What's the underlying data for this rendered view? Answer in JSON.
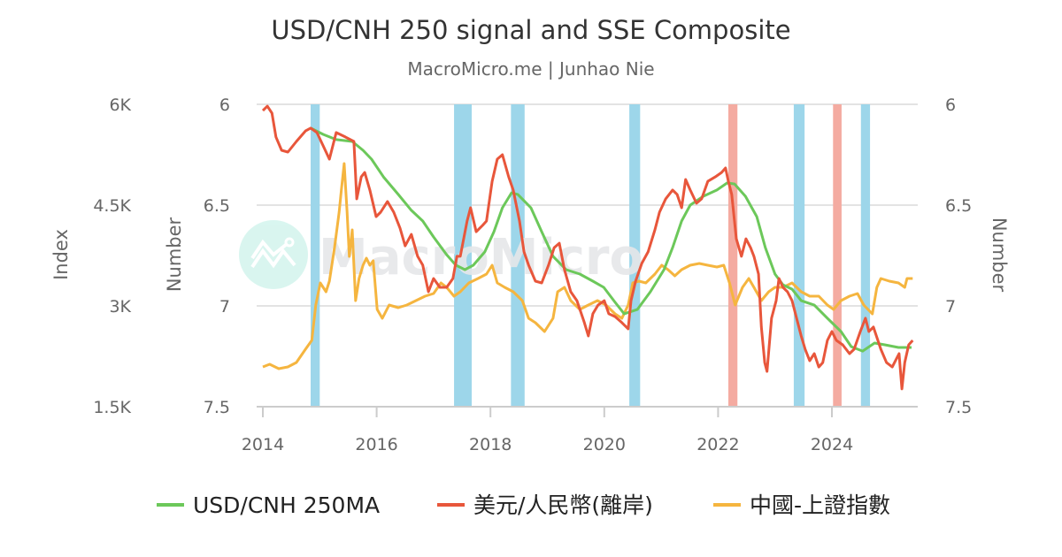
{
  "chart_data": {
    "type": "line",
    "title": "USD/CNH 250 signal and SSE Composite",
    "subtitle": "MacroMicro.me | Junhao Nie",
    "watermark": "MacroMicro",
    "x_axis": {
      "ticks": [
        "2014",
        "2016",
        "2018",
        "2020",
        "2022",
        "2024"
      ],
      "range": [
        2013.9,
        2025.5
      ]
    },
    "y_left": {
      "label": "Index",
      "ticks": [
        "6K",
        "4.5K",
        "3K",
        "1.5K"
      ],
      "range": [
        1500,
        6000
      ]
    },
    "y_mid": {
      "label": "Number",
      "ticks": [
        "6",
        "6.5",
        "7",
        "7.5"
      ],
      "range": [
        6,
        7.5
      ],
      "reversed": true
    },
    "y_right": {
      "label": "Number",
      "ticks": [
        "6",
        "6.5",
        "7",
        "7.5"
      ],
      "range": [
        6,
        7.5
      ],
      "reversed": true
    },
    "grid": true,
    "legend_position": "bottom",
    "bands": {
      "blue_color": "#9dd6ea",
      "red_color": "#f4aba1",
      "blue": [
        [
          2014.84,
          2015.0
        ],
        [
          2017.36,
          2017.67
        ],
        [
          2018.36,
          2018.6
        ],
        [
          2020.44,
          2020.63
        ],
        [
          2023.33,
          2023.52
        ],
        [
          2024.51,
          2024.67
        ]
      ],
      "red": [
        [
          2022.18,
          2022.34
        ],
        [
          2024.02,
          2024.17
        ]
      ]
    },
    "series": [
      {
        "name": "USD/CNH 250MA",
        "color": "#6cc85a",
        "axis": "y_mid",
        "points": [
          [
            2014.84,
            6.118
          ],
          [
            2015.06,
            6.149
          ],
          [
            2015.29,
            6.175
          ],
          [
            2015.57,
            6.184
          ],
          [
            2015.76,
            6.228
          ],
          [
            2015.91,
            6.272
          ],
          [
            2016.12,
            6.36
          ],
          [
            2016.38,
            6.447
          ],
          [
            2016.61,
            6.526
          ],
          [
            2016.81,
            6.579
          ],
          [
            2017.0,
            6.658
          ],
          [
            2017.23,
            6.746
          ],
          [
            2017.39,
            6.798
          ],
          [
            2017.55,
            6.82
          ],
          [
            2017.7,
            6.798
          ],
          [
            2017.9,
            6.732
          ],
          [
            2018.06,
            6.632
          ],
          [
            2018.21,
            6.513
          ],
          [
            2018.37,
            6.439
          ],
          [
            2018.48,
            6.447
          ],
          [
            2018.71,
            6.513
          ],
          [
            2018.9,
            6.632
          ],
          [
            2019.1,
            6.754
          ],
          [
            2019.33,
            6.82
          ],
          [
            2019.57,
            6.842
          ],
          [
            2019.8,
            6.877
          ],
          [
            2019.99,
            6.908
          ],
          [
            2020.19,
            6.982
          ],
          [
            2020.35,
            7.039
          ],
          [
            2020.58,
            7.018
          ],
          [
            2020.81,
            6.93
          ],
          [
            2021.05,
            6.82
          ],
          [
            2021.2,
            6.711
          ],
          [
            2021.36,
            6.579
          ],
          [
            2021.51,
            6.5
          ],
          [
            2021.74,
            6.456
          ],
          [
            2021.98,
            6.425
          ],
          [
            2022.16,
            6.39
          ],
          [
            2022.29,
            6.395
          ],
          [
            2022.48,
            6.456
          ],
          [
            2022.68,
            6.557
          ],
          [
            2022.83,
            6.711
          ],
          [
            2023.0,
            6.842
          ],
          [
            2023.14,
            6.895
          ],
          [
            2023.3,
            6.917
          ],
          [
            2023.46,
            6.974
          ],
          [
            2023.69,
            6.996
          ],
          [
            2023.92,
            7.061
          ],
          [
            2024.16,
            7.127
          ],
          [
            2024.34,
            7.202
          ],
          [
            2024.54,
            7.224
          ],
          [
            2024.75,
            7.184
          ],
          [
            2024.93,
            7.193
          ],
          [
            2025.17,
            7.206
          ],
          [
            2025.4,
            7.206
          ]
        ]
      },
      {
        "name": "美元/人民幣(離岸)",
        "color": "#e8563b",
        "axis": "y_mid",
        "points": [
          [
            2014.0,
            6.031
          ],
          [
            2014.08,
            6.009
          ],
          [
            2014.16,
            6.044
          ],
          [
            2014.23,
            6.162
          ],
          [
            2014.33,
            6.228
          ],
          [
            2014.44,
            6.237
          ],
          [
            2014.59,
            6.184
          ],
          [
            2014.75,
            6.132
          ],
          [
            2014.84,
            6.118
          ],
          [
            2014.95,
            6.14
          ],
          [
            2015.06,
            6.206
          ],
          [
            2015.17,
            6.272
          ],
          [
            2015.29,
            6.14
          ],
          [
            2015.45,
            6.162
          ],
          [
            2015.6,
            6.184
          ],
          [
            2015.65,
            6.469
          ],
          [
            2015.73,
            6.36
          ],
          [
            2015.79,
            6.338
          ],
          [
            2015.88,
            6.425
          ],
          [
            2015.99,
            6.557
          ],
          [
            2016.07,
            6.535
          ],
          [
            2016.19,
            6.482
          ],
          [
            2016.3,
            6.535
          ],
          [
            2016.41,
            6.614
          ],
          [
            2016.5,
            6.702
          ],
          [
            2016.61,
            6.645
          ],
          [
            2016.72,
            6.754
          ],
          [
            2016.81,
            6.798
          ],
          [
            2016.91,
            6.93
          ],
          [
            2017.0,
            6.864
          ],
          [
            2017.11,
            6.908
          ],
          [
            2017.23,
            6.908
          ],
          [
            2017.34,
            6.864
          ],
          [
            2017.41,
            6.754
          ],
          [
            2017.47,
            6.754
          ],
          [
            2017.59,
            6.579
          ],
          [
            2017.65,
            6.513
          ],
          [
            2017.75,
            6.632
          ],
          [
            2017.86,
            6.601
          ],
          [
            2017.93,
            6.579
          ],
          [
            2018.03,
            6.382
          ],
          [
            2018.12,
            6.272
          ],
          [
            2018.21,
            6.25
          ],
          [
            2018.32,
            6.36
          ],
          [
            2018.4,
            6.425
          ],
          [
            2018.51,
            6.579
          ],
          [
            2018.59,
            6.732
          ],
          [
            2018.67,
            6.798
          ],
          [
            2018.79,
            6.877
          ],
          [
            2018.9,
            6.886
          ],
          [
            2019.02,
            6.798
          ],
          [
            2019.12,
            6.711
          ],
          [
            2019.21,
            6.689
          ],
          [
            2019.3,
            6.82
          ],
          [
            2019.41,
            6.93
          ],
          [
            2019.52,
            6.974
          ],
          [
            2019.65,
            7.083
          ],
          [
            2019.72,
            7.149
          ],
          [
            2019.8,
            7.039
          ],
          [
            2019.89,
            6.996
          ],
          [
            2020.0,
            6.974
          ],
          [
            2020.08,
            7.039
          ],
          [
            2020.19,
            7.053
          ],
          [
            2020.31,
            7.083
          ],
          [
            2020.42,
            7.114
          ],
          [
            2020.47,
            6.974
          ],
          [
            2020.55,
            6.877
          ],
          [
            2020.66,
            6.789
          ],
          [
            2020.77,
            6.732
          ],
          [
            2020.89,
            6.623
          ],
          [
            2020.97,
            6.535
          ],
          [
            2021.08,
            6.469
          ],
          [
            2021.2,
            6.425
          ],
          [
            2021.28,
            6.447
          ],
          [
            2021.36,
            6.513
          ],
          [
            2021.43,
            6.373
          ],
          [
            2021.51,
            6.425
          ],
          [
            2021.62,
            6.491
          ],
          [
            2021.71,
            6.469
          ],
          [
            2021.82,
            6.382
          ],
          [
            2021.95,
            6.36
          ],
          [
            2022.06,
            6.338
          ],
          [
            2022.13,
            6.316
          ],
          [
            2022.18,
            6.382
          ],
          [
            2022.24,
            6.447
          ],
          [
            2022.32,
            6.667
          ],
          [
            2022.41,
            6.754
          ],
          [
            2022.49,
            6.667
          ],
          [
            2022.57,
            6.711
          ],
          [
            2022.63,
            6.754
          ],
          [
            2022.71,
            6.842
          ],
          [
            2022.76,
            7.105
          ],
          [
            2022.82,
            7.281
          ],
          [
            2022.86,
            7.325
          ],
          [
            2022.94,
            7.061
          ],
          [
            2023.02,
            6.974
          ],
          [
            2023.07,
            6.864
          ],
          [
            2023.14,
            6.908
          ],
          [
            2023.22,
            6.93
          ],
          [
            2023.3,
            6.974
          ],
          [
            2023.38,
            7.061
          ],
          [
            2023.46,
            7.149
          ],
          [
            2023.53,
            7.215
          ],
          [
            2023.61,
            7.272
          ],
          [
            2023.69,
            7.237
          ],
          [
            2023.77,
            7.303
          ],
          [
            2023.84,
            7.281
          ],
          [
            2023.92,
            7.171
          ],
          [
            2024.0,
            7.127
          ],
          [
            2024.08,
            7.171
          ],
          [
            2024.19,
            7.193
          ],
          [
            2024.31,
            7.237
          ],
          [
            2024.39,
            7.215
          ],
          [
            2024.5,
            7.127
          ],
          [
            2024.59,
            7.061
          ],
          [
            2024.65,
            7.127
          ],
          [
            2024.73,
            7.105
          ],
          [
            2024.86,
            7.215
          ],
          [
            2024.96,
            7.281
          ],
          [
            2025.06,
            7.303
          ],
          [
            2025.14,
            7.259
          ],
          [
            2025.18,
            7.237
          ],
          [
            2025.23,
            7.412
          ],
          [
            2025.28,
            7.281
          ],
          [
            2025.35,
            7.193
          ],
          [
            2025.42,
            7.171
          ]
        ]
      },
      {
        "name": "中國-上證指數",
        "color": "#f5b53f",
        "axis": "y_left",
        "points": [
          [
            2014.0,
            2092
          ],
          [
            2014.12,
            2131
          ],
          [
            2014.28,
            2066
          ],
          [
            2014.44,
            2092
          ],
          [
            2014.59,
            2158
          ],
          [
            2014.75,
            2355
          ],
          [
            2014.86,
            2487
          ],
          [
            2014.93,
            3013
          ],
          [
            2015.01,
            3342
          ],
          [
            2015.11,
            3211
          ],
          [
            2015.17,
            3368
          ],
          [
            2015.26,
            3868
          ],
          [
            2015.34,
            4395
          ],
          [
            2015.38,
            4724
          ],
          [
            2015.43,
            5118
          ],
          [
            2015.48,
            4395
          ],
          [
            2015.52,
            3737
          ],
          [
            2015.57,
            4132
          ],
          [
            2015.63,
            3079
          ],
          [
            2015.69,
            3408
          ],
          [
            2015.76,
            3605
          ],
          [
            2015.82,
            3711
          ],
          [
            2015.88,
            3605
          ],
          [
            2015.94,
            3671
          ],
          [
            2016.01,
            2947
          ],
          [
            2016.1,
            2816
          ],
          [
            2016.22,
            3013
          ],
          [
            2016.38,
            2974
          ],
          [
            2016.53,
            3013
          ],
          [
            2016.69,
            3079
          ],
          [
            2016.85,
            3145
          ],
          [
            2017.0,
            3184
          ],
          [
            2017.13,
            3342
          ],
          [
            2017.23,
            3276
          ],
          [
            2017.36,
            3145
          ],
          [
            2017.47,
            3211
          ],
          [
            2017.62,
            3342
          ],
          [
            2017.78,
            3408
          ],
          [
            2017.93,
            3474
          ],
          [
            2018.03,
            3605
          ],
          [
            2018.12,
            3342
          ],
          [
            2018.25,
            3276
          ],
          [
            2018.4,
            3211
          ],
          [
            2018.56,
            3079
          ],
          [
            2018.67,
            2816
          ],
          [
            2018.79,
            2750
          ],
          [
            2018.95,
            2618
          ],
          [
            2019.1,
            2816
          ],
          [
            2019.18,
            3211
          ],
          [
            2019.3,
            3276
          ],
          [
            2019.41,
            3079
          ],
          [
            2019.57,
            2947
          ],
          [
            2019.72,
            3013
          ],
          [
            2019.88,
            3079
          ],
          [
            2020.03,
            3013
          ],
          [
            2020.19,
            2882
          ],
          [
            2020.31,
            2816
          ],
          [
            2020.42,
            3013
          ],
          [
            2020.5,
            3342
          ],
          [
            2020.61,
            3368
          ],
          [
            2020.73,
            3342
          ],
          [
            2020.89,
            3474
          ],
          [
            2021.01,
            3605
          ],
          [
            2021.12,
            3539
          ],
          [
            2021.24,
            3447
          ],
          [
            2021.36,
            3539
          ],
          [
            2021.51,
            3605
          ],
          [
            2021.67,
            3632
          ],
          [
            2021.82,
            3605
          ],
          [
            2021.98,
            3579
          ],
          [
            2022.1,
            3605
          ],
          [
            2022.2,
            3342
          ],
          [
            2022.3,
            3013
          ],
          [
            2022.43,
            3276
          ],
          [
            2022.54,
            3408
          ],
          [
            2022.63,
            3276
          ],
          [
            2022.76,
            3079
          ],
          [
            2022.89,
            3211
          ],
          [
            2023.0,
            3276
          ],
          [
            2023.14,
            3276
          ],
          [
            2023.3,
            3342
          ],
          [
            2023.46,
            3211
          ],
          [
            2023.61,
            3145
          ],
          [
            2023.77,
            3145
          ],
          [
            2023.92,
            3013
          ],
          [
            2024.03,
            2947
          ],
          [
            2024.16,
            3079
          ],
          [
            2024.31,
            3145
          ],
          [
            2024.45,
            3184
          ],
          [
            2024.56,
            3013
          ],
          [
            2024.71,
            2882
          ],
          [
            2024.79,
            3276
          ],
          [
            2024.86,
            3408
          ],
          [
            2025.01,
            3368
          ],
          [
            2025.17,
            3342
          ],
          [
            2025.28,
            3276
          ],
          [
            2025.32,
            3408
          ],
          [
            2025.42,
            3408
          ]
        ]
      }
    ]
  }
}
